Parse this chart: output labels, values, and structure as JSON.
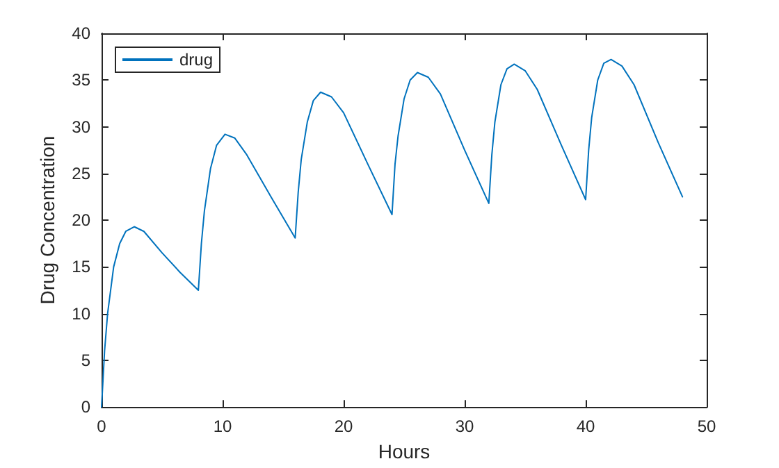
{
  "chart_data": {
    "type": "line",
    "xlabel": "Hours",
    "ylabel": "Drug Concentration",
    "series": [
      {
        "name": "drug",
        "color": "#0072bd",
        "x": [
          0,
          0.25,
          0.5,
          1,
          1.5,
          2,
          2.7,
          3.5,
          5,
          6.5,
          8,
          8.25,
          8.5,
          9,
          9.5,
          10.2,
          11,
          12,
          14,
          16,
          16.25,
          16.5,
          17,
          17.5,
          18.1,
          19,
          20,
          22,
          24,
          24.25,
          24.5,
          25,
          25.5,
          26.1,
          27,
          28,
          30,
          32,
          32.25,
          32.5,
          33,
          33.5,
          34.1,
          35,
          36,
          38,
          40,
          40.25,
          40.5,
          41,
          41.5,
          42.1,
          43,
          44,
          46,
          48
        ],
        "values": [
          0,
          6,
          10,
          15,
          17.5,
          18.8,
          19.3,
          18.8,
          16.5,
          14.4,
          12.5,
          17.5,
          21,
          25.5,
          28,
          29.2,
          28.8,
          27,
          22.5,
          18.1,
          23,
          26.5,
          30.5,
          32.8,
          33.7,
          33.2,
          31.5,
          26,
          20.6,
          26,
          29,
          33,
          35,
          35.8,
          35.3,
          33.5,
          27.5,
          21.8,
          27,
          30.5,
          34.5,
          36.2,
          36.7,
          36,
          34,
          28,
          22.2,
          27.5,
          31,
          35,
          36.8,
          37.2,
          36.5,
          34.5,
          28.3,
          22.5
        ]
      }
    ],
    "xlim": [
      0,
      50
    ],
    "xticks": [
      0,
      10,
      20,
      30,
      40,
      50
    ],
    "ylim": [
      0,
      40
    ],
    "yticks": [
      0,
      5,
      10,
      15,
      20,
      25,
      30,
      35,
      40
    ],
    "grid": false,
    "legend": "top left",
    "marker": "none",
    "line_style": "solid"
  }
}
